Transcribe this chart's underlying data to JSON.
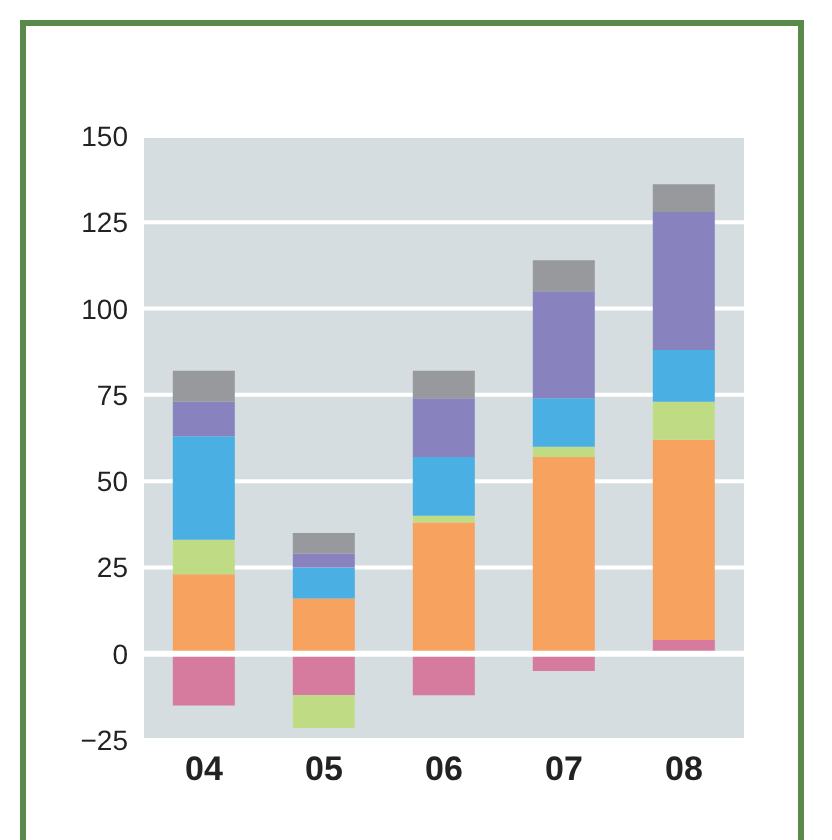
{
  "chart_data": {
    "type": "bar",
    "stacked": true,
    "categories": [
      "04",
      "05",
      "06",
      "07",
      "08"
    ],
    "series": [
      {
        "color": "#d67a9e",
        "values": [
          -15,
          -12,
          -12,
          -5,
          4
        ]
      },
      {
        "color": "#f7a35f",
        "values": [
          23,
          16,
          38,
          57,
          58
        ]
      },
      {
        "color": "#bfdc85",
        "values": [
          10,
          -9.5,
          2,
          3,
          11
        ]
      },
      {
        "color": "#4aafe3",
        "values": [
          30,
          9,
          17,
          14,
          15
        ]
      },
      {
        "color": "#8882be",
        "values": [
          10,
          4,
          17,
          31,
          40
        ]
      },
      {
        "color": "#97999c",
        "values": [
          9,
          6,
          8,
          9,
          8
        ]
      }
    ],
    "ylim": [
      -25,
      150
    ],
    "yticks": [
      -25,
      0,
      25,
      50,
      75,
      100,
      125,
      150
    ],
    "grid": "y"
  }
}
